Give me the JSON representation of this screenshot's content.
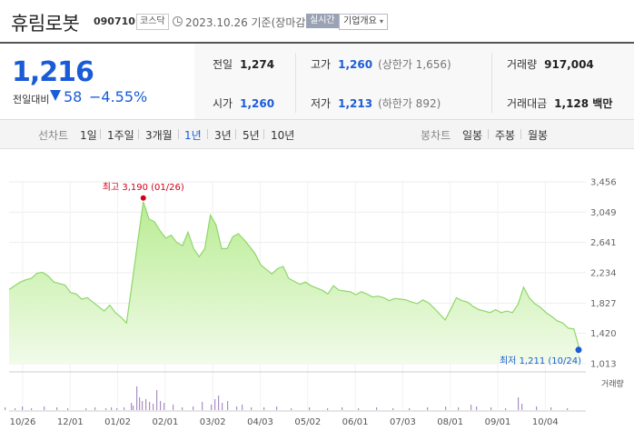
{
  "header": {
    "title": "휴림로봇",
    "code": "090710",
    "market": "코스닥",
    "date": "2023.10.26  기준(장마감)",
    "realtime": "실시간",
    "company_menu": "기업개요"
  },
  "price": {
    "current": "1,216",
    "change_label": "전일대비",
    "change": "58",
    "rate": "−4.55%"
  },
  "stats": {
    "prev_close_label": "전일",
    "prev_close": "1,274",
    "high_label": "고가",
    "high": "1,260",
    "upper_limit": "(상한가 1,656)",
    "volume_label": "거래량",
    "volume": "917,004",
    "open_label": "시가",
    "open": "1,260",
    "low_label": "저가",
    "low": "1,213",
    "lower_limit": "(하한가 892)",
    "amount_label": "거래대금",
    "amount": "1,128 백만"
  },
  "range_bar": {
    "period_label": "선차트",
    "periods": [
      "1일",
      "1주일",
      "3개월",
      "1년",
      "3년",
      "5년",
      "10년"
    ],
    "active_period": "1년",
    "candle_label": "봉차트",
    "candles": [
      "일봉",
      "주봉",
      "월봉"
    ]
  },
  "colors": {
    "accent": "#1a5cd7",
    "line": "#8fd66a",
    "max": "#d0021b"
  },
  "chart_data": {
    "type": "area",
    "x_ticks": [
      "10/26",
      "12/01",
      "01/02",
      "02/01",
      "03/02",
      "04/03",
      "05/02",
      "06/01",
      "07/03",
      "08/01",
      "09/01",
      "10/04"
    ],
    "y_ticks": [
      "3,456",
      "3,049",
      "2,641",
      "2,234",
      "1,827",
      "1,420",
      "1,013"
    ],
    "ylim": [
      1013,
      3456
    ],
    "volume_label": "거래량",
    "max_annotation": "최고 3,190 (01/26)",
    "min_annotation": "최저 1,211 (10/24)",
    "series": [
      {
        "values": [
          2010,
          2060,
          2110,
          2140,
          2160,
          2230,
          2240,
          2190,
          2110,
          2090,
          2070,
          1970,
          1950,
          1880,
          1900,
          1840,
          1780,
          1720,
          1800,
          1700,
          1640,
          1560,
          2100,
          2650,
          3190,
          2960,
          2920,
          2800,
          2700,
          2740,
          2640,
          2600,
          2780,
          2560,
          2450,
          2560,
          3010,
          2880,
          2560,
          2560,
          2720,
          2760,
          2680,
          2590,
          2490,
          2340,
          2280,
          2220,
          2290,
          2320,
          2160,
          2120,
          2080,
          2110,
          2060,
          2030,
          2000,
          1950,
          2060,
          2000,
          1990,
          1980,
          1940,
          1980,
          1950,
          1910,
          1920,
          1900,
          1860,
          1890,
          1880,
          1870,
          1840,
          1820,
          1870,
          1830,
          1760,
          1680,
          1600,
          1750,
          1900,
          1860,
          1840,
          1780,
          1740,
          1720,
          1700,
          1740,
          1700,
          1720,
          1700,
          1810,
          2040,
          1900,
          1820,
          1770,
          1700,
          1650,
          1590,
          1560,
          1490,
          1480,
          1211
        ]
      }
    ]
  }
}
